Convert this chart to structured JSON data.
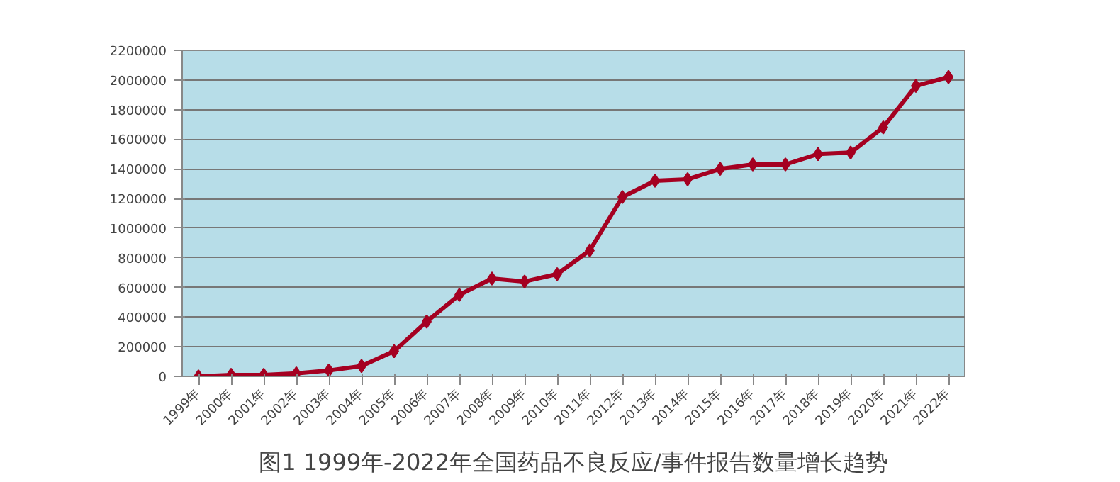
{
  "chart_data": {
    "type": "line",
    "title": "图1 1999年-2022年全国药品不良反应/事件报告数量增长趋势",
    "categories": [
      "1999年",
      "2000年",
      "2001年",
      "2002年",
      "2003年",
      "2004年",
      "2005年",
      "2006年",
      "2007年",
      "2008年",
      "2009年",
      "2010年",
      "2011年",
      "2012年",
      "2013年",
      "2014年",
      "2015年",
      "2016年",
      "2017年",
      "2018年",
      "2019年",
      "2020年",
      "2021年",
      "2022年"
    ],
    "series": [
      {
        "color": "#a50021",
        "values": [
          0,
          10000,
          10000,
          20000,
          40000,
          70000,
          170000,
          370000,
          550000,
          660000,
          640000,
          690000,
          850000,
          1210000,
          1320000,
          1330000,
          1400000,
          1430000,
          1430000,
          1500000,
          1510000,
          1680000,
          1960000,
          2020000
        ]
      }
    ],
    "ylim": [
      0,
      2200000
    ],
    "yticks": [
      0,
      200000,
      400000,
      600000,
      800000,
      1000000,
      1200000,
      1400000,
      1600000,
      1800000,
      2000000,
      2200000
    ],
    "grid": "y",
    "marker": "diamond",
    "line_style": "solid"
  }
}
